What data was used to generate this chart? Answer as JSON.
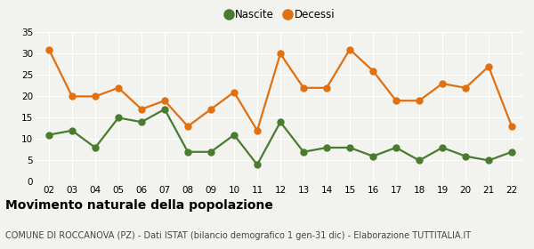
{
  "years": [
    "02",
    "03",
    "04",
    "05",
    "06",
    "07",
    "08",
    "09",
    "10",
    "11",
    "12",
    "13",
    "14",
    "15",
    "16",
    "17",
    "18",
    "19",
    "20",
    "21",
    "22"
  ],
  "nascite": [
    11,
    12,
    8,
    15,
    14,
    17,
    7,
    7,
    11,
    4,
    14,
    7,
    8,
    8,
    6,
    8,
    5,
    8,
    6,
    5,
    7
  ],
  "decessi": [
    31,
    20,
    20,
    22,
    17,
    19,
    13,
    17,
    21,
    12,
    30,
    22,
    22,
    31,
    26,
    19,
    19,
    23,
    22,
    27,
    13
  ],
  "nascite_color": "#4a7c2f",
  "decessi_color": "#e07010",
  "ylim": [
    0,
    35
  ],
  "yticks": [
    0,
    5,
    10,
    15,
    20,
    25,
    30,
    35
  ],
  "title": "Movimento naturale della popolazione",
  "subtitle": "COMUNE DI ROCCANOVA (PZ) - Dati ISTAT (bilancio demografico 1 gen-31 dic) - Elaborazione TUTTITALIA.IT",
  "legend_nascite": "Nascite",
  "legend_decessi": "Decessi",
  "bg_color": "#f2f2ee",
  "grid_color": "#ffffff",
  "title_fontsize": 10,
  "subtitle_fontsize": 7,
  "legend_fontsize": 8.5,
  "marker_size": 5,
  "line_width": 1.6
}
